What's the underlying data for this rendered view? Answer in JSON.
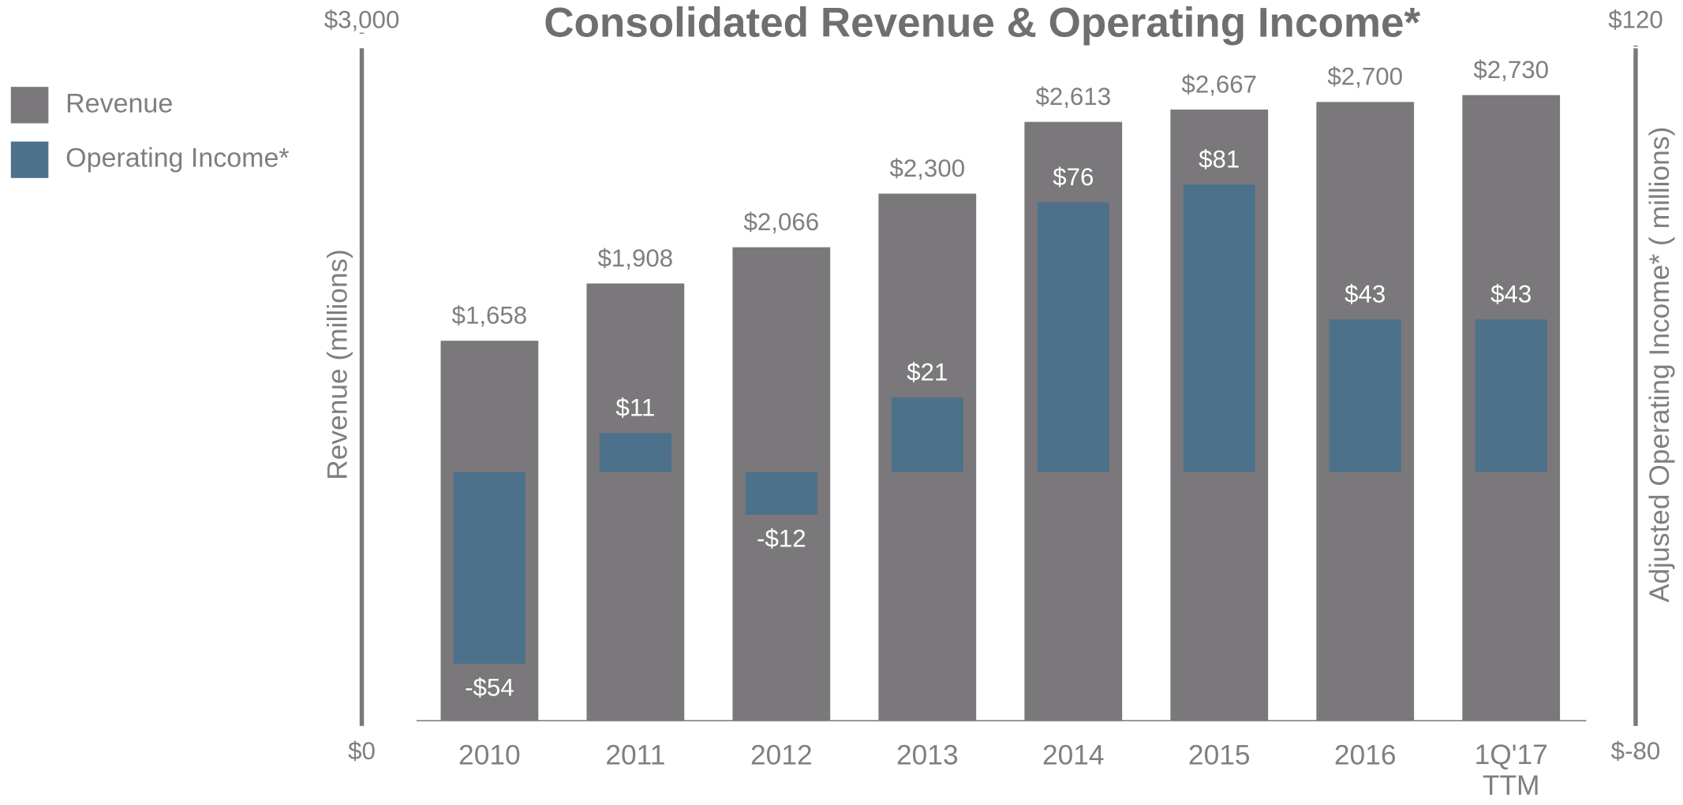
{
  "chart_data": {
    "type": "bar",
    "title": "Consolidated Revenue & Operating Income*",
    "ylabel": "Revenue (millions)",
    "y2label": "Adjusted Operating Income* ( millions)",
    "categories": [
      "2010",
      "2011",
      "2012",
      "2013",
      "2014",
      "2015",
      "2016",
      "1Q'17\nTTM"
    ],
    "series": [
      {
        "name": "Revenue",
        "color": "#7a787b",
        "values": [
          1658,
          1908,
          2066,
          2300,
          2613,
          2667,
          2700,
          2730
        ],
        "value_labels": [
          "$1,658",
          "$1,908",
          "$2,066",
          "$2,300",
          "$2,613",
          "$2,667",
          "$2,700",
          "$2,730"
        ]
      },
      {
        "name": "Operating Income*",
        "color": "#4d718a",
        "axis": "y2",
        "values": [
          -54,
          11,
          -12,
          21,
          76,
          81,
          43,
          43
        ],
        "value_labels": [
          "-$54",
          "$11",
          "-$12",
          "$21",
          "$76",
          "$81",
          "$43",
          "$43"
        ]
      }
    ],
    "ylim": [
      0,
      3000
    ],
    "yticks": [
      {
        "value": 0,
        "label": "$0"
      },
      {
        "value": 3000,
        "label": "$3,000"
      }
    ],
    "y2lim": [
      -80,
      120
    ],
    "y2ticks": [
      {
        "value": -80,
        "label": "$-80"
      },
      {
        "value": 120,
        "label": "$120"
      }
    ],
    "legend": "left"
  }
}
